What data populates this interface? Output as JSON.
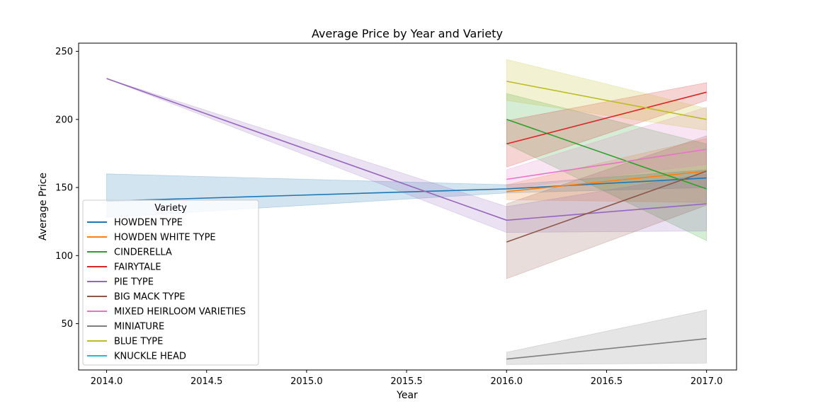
{
  "chart_data": {
    "type": "line",
    "title": "Average Price by Year and Variety",
    "xlabel": "Year",
    "ylabel": "Average Price",
    "xlim": [
      2013.86,
      2017.15
    ],
    "ylim": [
      16,
      256
    ],
    "xticks": [
      2014.0,
      2014.5,
      2015.0,
      2015.5,
      2016.0,
      2016.5,
      2017.0
    ],
    "xtick_labels": [
      "2014.0",
      "2014.5",
      "2015.0",
      "2015.5",
      "2016.0",
      "2016.5",
      "2017.0"
    ],
    "yticks": [
      50,
      100,
      150,
      200,
      250
    ],
    "ytick_labels": [
      "50",
      "100",
      "150",
      "200",
      "250"
    ],
    "grid": false,
    "legend_title": "Variety",
    "legend_position": "center-left",
    "series": [
      {
        "name": "HOWDEN TYPE",
        "color": "#1f77b4",
        "x": [
          2014,
          2016,
          2017
        ],
        "y": [
          140,
          149,
          157
        ],
        "ci_low": [
          128,
          146,
          150
        ],
        "ci_high": [
          160,
          152,
          163
        ]
      },
      {
        "name": "HOWDEN WHITE TYPE",
        "color": "#ff7f0e",
        "x": [
          2016,
          2017
        ],
        "y": [
          147,
          162
        ],
        "ci_low": [
          141,
          139
        ],
        "ci_high": [
          152,
          186
        ]
      },
      {
        "name": "CINDERELLA",
        "color": "#2ca02c",
        "x": [
          2016,
          2017
        ],
        "y": [
          200,
          149
        ],
        "ci_low": [
          182,
          111
        ],
        "ci_high": [
          219,
          182
        ]
      },
      {
        "name": "FAIRYTALE",
        "color": "#d62728",
        "x": [
          2016,
          2017
        ],
        "y": [
          182,
          220
        ],
        "ci_low": [
          165,
          214
        ],
        "ci_high": [
          199,
          227
        ]
      },
      {
        "name": "PIE TYPE",
        "color": "#9467bd",
        "x": [
          2014,
          2016,
          2017
        ],
        "y": [
          230,
          126,
          138
        ],
        "ci_low": [
          230,
          117,
          118
        ],
        "ci_high": [
          230,
          136,
          160
        ]
      },
      {
        "name": "BIG MACK TYPE",
        "color": "#8c564b",
        "x": [
          2016,
          2017
        ],
        "y": [
          110,
          162
        ],
        "ci_low": [
          83,
          137
        ],
        "ci_high": [
          138,
          188
        ]
      },
      {
        "name": "MIXED HEIRLOOM VARIETIES",
        "color": "#e377c2",
        "x": [
          2016,
          2017
        ],
        "y": [
          156,
          178
        ],
        "ci_low": [
          149,
          167
        ],
        "ci_high": [
          163,
          209
        ]
      },
      {
        "name": "MINIATURE",
        "color": "#7f7f7f",
        "x": [
          2016,
          2017
        ],
        "y": [
          24,
          39
        ],
        "ci_low": [
          20,
          21
        ],
        "ci_high": [
          29,
          60
        ]
      },
      {
        "name": "BLUE TYPE",
        "color": "#bcbd22",
        "x": [
          2016,
          2017
        ],
        "y": [
          228,
          200
        ],
        "ci_low": [
          214,
          192
        ],
        "ci_high": [
          244,
          208
        ]
      },
      {
        "name": "KNUCKLE HEAD",
        "color": "#17becf",
        "x": [],
        "y": [],
        "ci_low": [],
        "ci_high": []
      }
    ]
  }
}
